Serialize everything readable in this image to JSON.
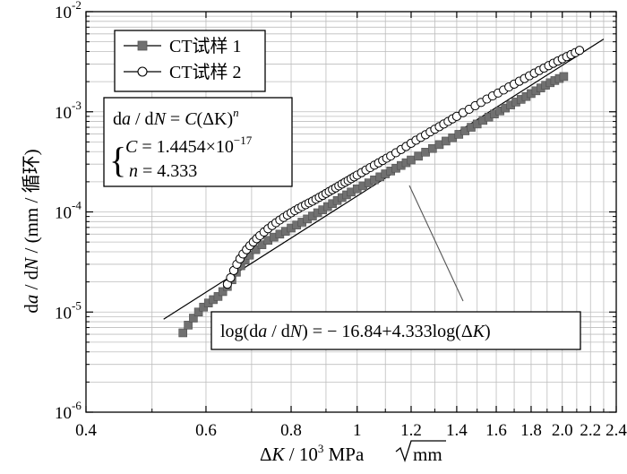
{
  "chart_data": {
    "type": "scatter",
    "title": "",
    "xlabel": "ΔK/10³MPa√mm",
    "ylabel": "da/dN/(mm/循环)",
    "x_scale": "log",
    "y_scale": "log",
    "xlim": [
      0.4,
      2.4
    ],
    "ylim": [
      1e-06,
      0.01
    ],
    "grid": true,
    "x_ticks": [
      0.4,
      0.6,
      0.8,
      1.0,
      1.2,
      1.4,
      1.6,
      1.8,
      2.0,
      2.2,
      2.4
    ],
    "x_tick_labels": [
      "0.4",
      "0.6",
      "0.8",
      "1",
      "1.2",
      "1.4",
      "1.6",
      "1.8",
      "2.0",
      "2.2",
      "2.4"
    ],
    "y_ticks": [
      1e-06,
      1e-05,
      0.0001,
      0.001,
      0.01
    ],
    "y_tick_labels": [
      {
        "base": "10",
        "exp": "-6"
      },
      {
        "base": "10",
        "exp": "-5"
      },
      {
        "base": "10",
        "exp": "-4"
      },
      {
        "base": "10",
        "exp": "-3"
      },
      {
        "base": "10",
        "exp": "-2"
      }
    ],
    "legend_position": "top-left",
    "series": [
      {
        "name": "CT试样 1",
        "marker": "filled-square",
        "color": "#707070",
        "x": [
          0.555,
          0.565,
          0.575,
          0.585,
          0.595,
          0.605,
          0.615,
          0.625,
          0.635,
          0.645,
          0.655,
          0.665,
          0.675,
          0.685,
          0.695,
          0.71,
          0.725,
          0.74,
          0.755,
          0.77,
          0.785,
          0.8,
          0.815,
          0.83,
          0.845,
          0.86,
          0.875,
          0.89,
          0.905,
          0.92,
          0.935,
          0.95,
          0.965,
          0.98,
          1.0,
          1.02,
          1.04,
          1.06,
          1.08,
          1.1,
          1.12,
          1.14,
          1.16,
          1.18,
          1.2,
          1.23,
          1.26,
          1.29,
          1.32,
          1.35,
          1.38,
          1.41,
          1.44,
          1.47,
          1.5,
          1.53,
          1.56,
          1.59,
          1.62,
          1.65,
          1.68,
          1.71,
          1.74,
          1.77,
          1.8,
          1.83,
          1.86,
          1.89,
          1.92,
          1.95,
          1.98,
          2.01
        ],
        "y": [
          6.2e-06,
          7.4e-06,
          8.7e-06,
          1e-05,
          1.12e-05,
          1.23e-05,
          1.33e-05,
          1.43e-05,
          1.6e-05,
          1.8e-05,
          2.1e-05,
          2.5e-05,
          2.9e-05,
          3.3e-05,
          3.7e-05,
          4.2e-05,
          4.7e-05,
          5.2e-05,
          5.6e-05,
          6e-05,
          6.4e-05,
          6.9e-05,
          7.4e-05,
          7.9e-05,
          8.5e-05,
          9.1e-05,
          9.8e-05,
          0.000105,
          0.000113,
          0.000121,
          0.00013,
          0.000139,
          0.000148,
          0.000158,
          0.00017,
          0.000182,
          0.000195,
          0.000209,
          0.000224,
          0.00024,
          0.000256,
          0.000273,
          0.000291,
          0.00031,
          0.00033,
          0.00036,
          0.000395,
          0.00043,
          0.00047,
          0.00051,
          0.00055,
          0.000595,
          0.000645,
          0.0007,
          0.000755,
          0.00082,
          0.000885,
          0.00095,
          0.00102,
          0.00109,
          0.00117,
          0.00125,
          0.00133,
          0.00142,
          0.00152,
          0.00162,
          0.00173,
          0.00184,
          0.00195,
          0.00205,
          0.00215,
          0.00225
        ]
      },
      {
        "name": "CT试样 2",
        "marker": "open-circle",
        "color": "#000000",
        "x": [
          0.645,
          0.652,
          0.659,
          0.666,
          0.673,
          0.68,
          0.688,
          0.696,
          0.704,
          0.712,
          0.72,
          0.73,
          0.74,
          0.75,
          0.76,
          0.77,
          0.78,
          0.79,
          0.8,
          0.81,
          0.82,
          0.83,
          0.84,
          0.85,
          0.86,
          0.87,
          0.88,
          0.89,
          0.9,
          0.91,
          0.92,
          0.93,
          0.94,
          0.95,
          0.96,
          0.97,
          0.98,
          0.99,
          1.0,
          1.015,
          1.03,
          1.045,
          1.06,
          1.075,
          1.09,
          1.105,
          1.12,
          1.14,
          1.16,
          1.18,
          1.2,
          1.22,
          1.24,
          1.26,
          1.28,
          1.3,
          1.32,
          1.34,
          1.36,
          1.38,
          1.4,
          1.43,
          1.46,
          1.49,
          1.52,
          1.55,
          1.58,
          1.61,
          1.64,
          1.67,
          1.7,
          1.73,
          1.76,
          1.79,
          1.82,
          1.85,
          1.88,
          1.91,
          1.94,
          1.97,
          2.0,
          2.03,
          2.06,
          2.09,
          2.12
        ],
        "y": [
          1.9e-05,
          2.2e-05,
          2.6e-05,
          3e-05,
          3.4e-05,
          3.8e-05,
          4.2e-05,
          4.6e-05,
          5e-05,
          5.4e-05,
          5.8e-05,
          6.3e-05,
          6.8e-05,
          7.3e-05,
          7.8e-05,
          8.3e-05,
          8.8e-05,
          9.3e-05,
          9.8e-05,
          0.000103,
          0.000108,
          0.000113,
          0.000118,
          0.000123,
          0.000128,
          0.000134,
          0.00014,
          0.000146,
          0.000153,
          0.00016,
          0.000167,
          0.000174,
          0.000182,
          0.00019,
          0.000198,
          0.000206,
          0.000215,
          0.000224,
          0.000233,
          0.000247,
          0.000262,
          0.000277,
          0.000293,
          0.000309,
          0.000326,
          0.000344,
          0.000362,
          0.00039,
          0.00042,
          0.00045,
          0.000485,
          0.00052,
          0.000555,
          0.00059,
          0.00063,
          0.00067,
          0.00071,
          0.000755,
          0.0008,
          0.00085,
          0.0009,
          0.00098,
          0.00106,
          0.00115,
          0.00124,
          0.00134,
          0.00144,
          0.00154,
          0.00165,
          0.00177,
          0.00189,
          0.00202,
          0.00215,
          0.00229,
          0.00243,
          0.00258,
          0.00273,
          0.00289,
          0.00305,
          0.00321,
          0.00338,
          0.00355,
          0.00372,
          0.0039,
          0.0041
        ]
      }
    ],
    "fit_line": {
      "x_range": [
        0.52,
        2.3
      ],
      "log_C": -16.84,
      "n": 4.333
    },
    "equation_box": {
      "line1": {
        "d1": "d",
        "a": "a",
        "slash": " / d",
        "N": "N",
        "rhs": " = ",
        "C": "C",
        "rest": "(ΔK)",
        "sup": "n"
      },
      "brace": "{",
      "line2": {
        "C": "C",
        "eq": " = 1.4454×10",
        "sup": "−17"
      },
      "line3": {
        "n": "n",
        "eq": " = 4.333"
      }
    },
    "fit_label": {
      "pre": "log(d",
      "a": "a",
      "mid": " / d",
      "N": "N",
      "post": ") = − 16.84+4.333log(Δ",
      "K": "K",
      "end": ")"
    },
    "axis_title_parts": {
      "x": {
        "delta": "Δ",
        "K": "K",
        "mid": " / 10",
        "sup": "3",
        "unit": " MPa",
        "root": "mm"
      },
      "y": {
        "d1": "d",
        "a": "a",
        "mid": " / d",
        "N": "N",
        "unit": " / (mm / 循环)"
      }
    }
  }
}
